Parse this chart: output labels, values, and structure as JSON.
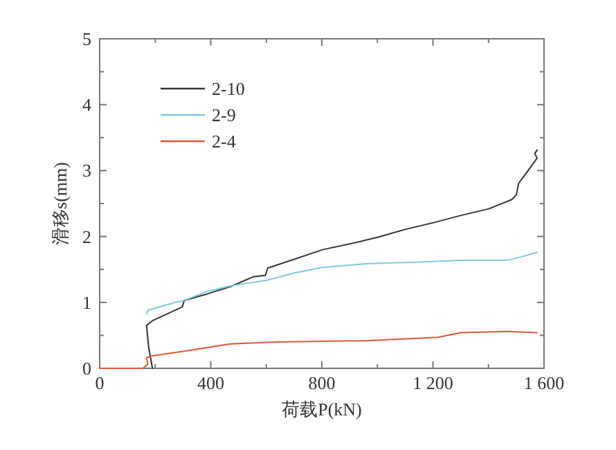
{
  "chart_data": {
    "type": "line",
    "xlabel": "荷载P(kN)",
    "ylabel": "滑移s(mm)",
    "xlim": [
      0,
      1600
    ],
    "ylim": [
      0,
      5
    ],
    "xticks": [
      0,
      {
        "value": 200,
        "label": null
      },
      400,
      {
        "value": 600,
        "label": null
      },
      800,
      {
        "value": 1000,
        "label": null
      },
      {
        "value": 1200,
        "label": "1 200"
      },
      {
        "value": 1400,
        "label": null
      },
      {
        "value": 1600,
        "label": "1 600"
      }
    ],
    "yticks": [
      0,
      {
        "value": 0.5,
        "label": null
      },
      1,
      {
        "value": 1.5,
        "label": null
      },
      2,
      {
        "value": 2.5,
        "label": null
      },
      3,
      {
        "value": 3.5,
        "label": null
      },
      4,
      {
        "value": 4.5,
        "label": null
      },
      5
    ],
    "grid": false,
    "legend": "top left",
    "marker": "none",
    "line_style": "solid",
    "series": [
      {
        "name": "2-10",
        "color": "#333333",
        "x": [
          190,
          176,
          169,
          189,
          297,
          305,
          388,
          471,
          554,
          597,
          605,
          704,
          803,
          903,
          1003,
          1102,
          1202,
          1301,
          1401,
          1484,
          1500,
          1509,
          1534,
          1575,
          1567,
          1575
        ],
        "values": [
          0,
          0.33,
          0.65,
          0.72,
          0.93,
          1.03,
          1.13,
          1.24,
          1.39,
          1.41,
          1.52,
          1.66,
          1.8,
          1.89,
          1.99,
          2.11,
          2.21,
          2.32,
          2.42,
          2.56,
          2.63,
          2.81,
          2.95,
          3.19,
          3.26,
          3.31
        ]
      },
      {
        "name": "2-9",
        "color": "#7fcbe0",
        "x": [
          169,
          173,
          272,
          305,
          388,
          471,
          605,
          704,
          803,
          970,
          1136,
          1301,
          1467,
          1517,
          1575
        ],
        "values": [
          0.82,
          0.88,
          1.0,
          1.03,
          1.17,
          1.25,
          1.34,
          1.45,
          1.53,
          1.59,
          1.61,
          1.64,
          1.64,
          1.69,
          1.76
        ]
      },
      {
        "name": "2-4",
        "color": "#e0553a",
        "x": [
          0,
          156,
          173,
          169,
          189,
          305,
          471,
          637,
          970,
          1218,
          1301,
          1467,
          1575
        ],
        "values": [
          0,
          0,
          0.06,
          0.16,
          0.19,
          0.26,
          0.37,
          0.4,
          0.42,
          0.47,
          0.54,
          0.56,
          0.54
        ]
      }
    ]
  }
}
